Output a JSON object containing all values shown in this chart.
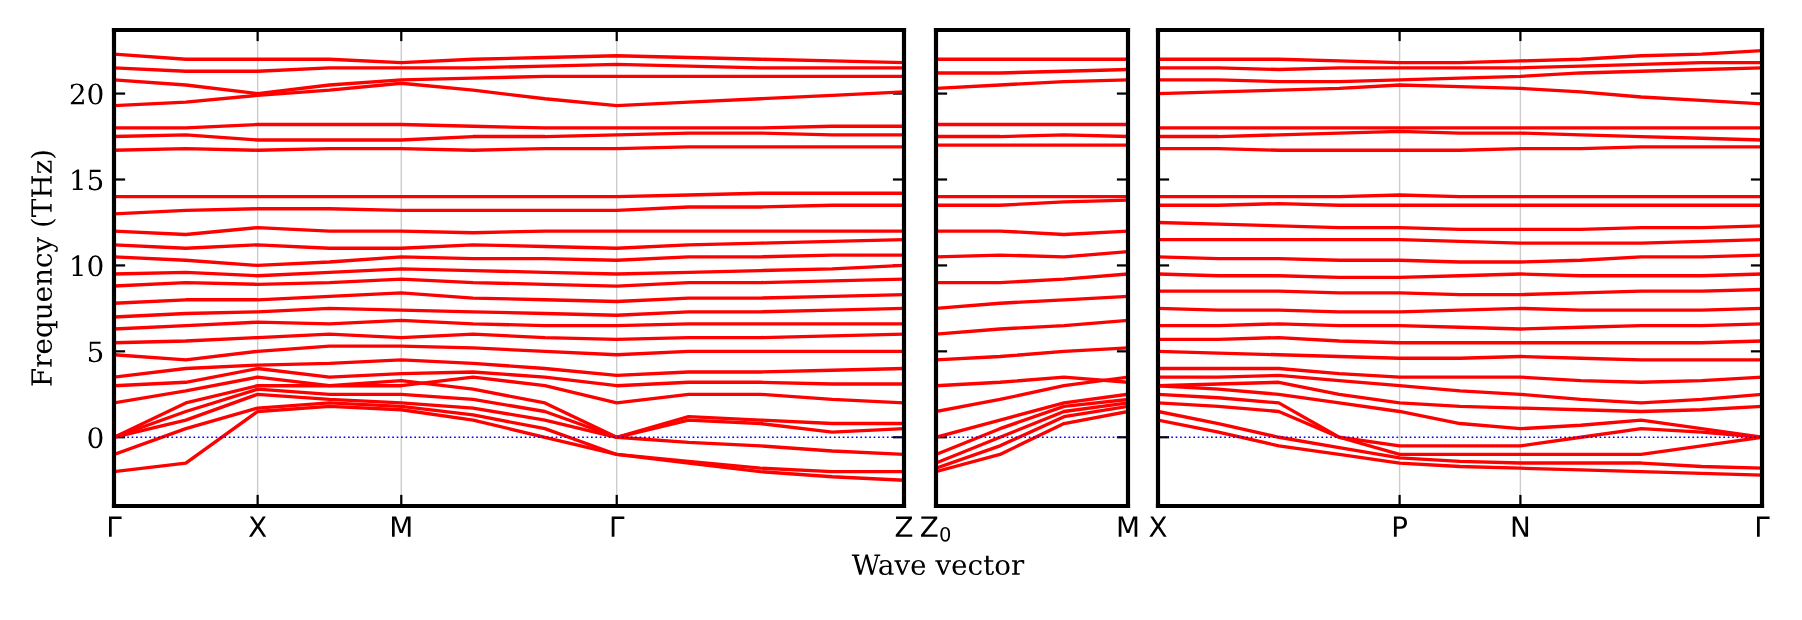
{
  "chart_data": [
    {
      "type": "line",
      "ylabel": "Frequency (THz)",
      "categories": [
        "Γ",
        null,
        "X",
        null,
        "M",
        null,
        null,
        "Γ",
        null,
        null,
        null,
        "Z"
      ],
      "ylim": [
        -4,
        23.7
      ],
      "yticks": [
        0,
        5,
        10,
        15,
        20
      ],
      "grid": "x",
      "ref_lines": [
        {
          "axis": "y",
          "value": 0,
          "color": "#0000ff",
          "line_style": "dotted"
        }
      ],
      "series": [
        {
          "color": "#ff0000",
          "values": [
            -2,
            -1.5,
            1.5,
            1.8,
            1.6,
            1,
            0,
            -1,
            -1.5,
            -2,
            -2.3,
            -2.5
          ]
        },
        {
          "color": "#ff0000",
          "values": [
            -1,
            0.5,
            1.7,
            2,
            1.8,
            1.3,
            0.5,
            -1,
            -1.4,
            -1.8,
            -2,
            -2
          ]
        },
        {
          "color": "#ff0000",
          "values": [
            0,
            1,
            2.5,
            2.2,
            2,
            1.7,
            1,
            0,
            -0.3,
            -0.5,
            -0.8,
            -1
          ]
        },
        {
          "color": "#ff0000",
          "values": [
            0,
            1.5,
            2.8,
            2.5,
            2.5,
            2.2,
            1.5,
            0,
            1,
            0.8,
            0.3,
            0.5
          ]
        },
        {
          "color": "#ff0000",
          "values": [
            0,
            2,
            3,
            3,
            3.3,
            2.8,
            2,
            0,
            1.2,
            1,
            0.8,
            0.8
          ]
        },
        {
          "color": "#ff0000",
          "values": [
            2,
            2.7,
            3.5,
            3,
            3,
            3.5,
            3,
            2,
            2.5,
            2.5,
            2.2,
            2
          ]
        },
        {
          "color": "#ff0000",
          "values": [
            3,
            3.2,
            4,
            3.5,
            3.7,
            3.8,
            3.5,
            3,
            3.2,
            3.2,
            3.1,
            3.1
          ]
        },
        {
          "color": "#ff0000",
          "values": [
            3.5,
            4,
            4.2,
            4.3,
            4.5,
            4.3,
            4,
            3.6,
            3.8,
            3.8,
            3.9,
            4
          ]
        },
        {
          "color": "#ff0000",
          "values": [
            4.8,
            4.5,
            5,
            5.3,
            5.3,
            5.2,
            5,
            4.8,
            5,
            5,
            5,
            5
          ]
        },
        {
          "color": "#ff0000",
          "values": [
            5.5,
            5.6,
            5.8,
            6,
            5.8,
            6,
            5.8,
            5.7,
            5.8,
            5.8,
            5.9,
            6
          ]
        },
        {
          "color": "#ff0000",
          "values": [
            6.3,
            6.5,
            6.7,
            6.6,
            6.8,
            6.6,
            6.5,
            6.5,
            6.6,
            6.6,
            6.6,
            6.6
          ]
        },
        {
          "color": "#ff0000",
          "values": [
            7,
            7.2,
            7.3,
            7.5,
            7.4,
            7.3,
            7.2,
            7.1,
            7.3,
            7.3,
            7.4,
            7.5
          ]
        },
        {
          "color": "#ff0000",
          "values": [
            7.8,
            8,
            8,
            8.2,
            8.4,
            8.1,
            8,
            7.9,
            8.1,
            8.1,
            8.2,
            8.3
          ]
        },
        {
          "color": "#ff0000",
          "values": [
            8.8,
            9,
            8.9,
            9,
            9.2,
            9,
            8.9,
            8.8,
            9,
            9,
            9.1,
            9.2
          ]
        },
        {
          "color": "#ff0000",
          "values": [
            9.5,
            9.6,
            9.4,
            9.6,
            9.8,
            9.7,
            9.6,
            9.5,
            9.6,
            9.7,
            9.8,
            10
          ]
        },
        {
          "color": "#ff0000",
          "values": [
            10.5,
            10.3,
            10,
            10.2,
            10.5,
            10.4,
            10.4,
            10.3,
            10.5,
            10.5,
            10.6,
            10.6
          ]
        },
        {
          "color": "#ff0000",
          "values": [
            11.2,
            11,
            11.2,
            11,
            11,
            11.2,
            11.1,
            11,
            11.2,
            11.3,
            11.4,
            11.5
          ]
        },
        {
          "color": "#ff0000",
          "values": [
            12,
            11.8,
            12.2,
            12,
            12,
            11.9,
            12,
            12,
            12,
            12,
            12,
            12
          ]
        },
        {
          "color": "#ff0000",
          "values": [
            13,
            13.2,
            13.3,
            13.3,
            13.2,
            13.2,
            13.2,
            13.2,
            13.4,
            13.4,
            13.5,
            13.5
          ]
        },
        {
          "color": "#ff0000",
          "values": [
            14,
            14,
            14,
            14,
            14,
            14,
            14,
            14,
            14.1,
            14.2,
            14.2,
            14.2
          ]
        },
        {
          "color": "#ff0000",
          "values": [
            16.7,
            16.8,
            16.7,
            16.8,
            16.8,
            16.7,
            16.8,
            16.8,
            16.9,
            16.9,
            16.9,
            16.9
          ]
        },
        {
          "color": "#ff0000",
          "values": [
            17.5,
            17.6,
            17.3,
            17.3,
            17.3,
            17.5,
            17.5,
            17.6,
            17.7,
            17.7,
            17.6,
            17.6
          ]
        },
        {
          "color": "#ff0000",
          "values": [
            18,
            18,
            18.2,
            18.2,
            18.2,
            18.1,
            18,
            18,
            18,
            18,
            18.1,
            18.1
          ]
        },
        {
          "color": "#ff0000",
          "values": [
            19.3,
            19.5,
            19.9,
            20.2,
            20.6,
            20.2,
            19.7,
            19.3,
            19.5,
            19.7,
            19.9,
            20.1
          ]
        },
        {
          "color": "#ff0000",
          "values": [
            20.8,
            20.5,
            20,
            20.5,
            20.8,
            20.9,
            21,
            21,
            21,
            21,
            21,
            21
          ]
        },
        {
          "color": "#ff0000",
          "values": [
            21.5,
            21.3,
            21.3,
            21.5,
            21.5,
            21.5,
            21.6,
            21.7,
            21.6,
            21.5,
            21.5,
            21.5
          ]
        },
        {
          "color": "#ff0000",
          "values": [
            22.3,
            22,
            22,
            22,
            21.8,
            22,
            22.1,
            22.2,
            22.1,
            22,
            21.9,
            21.8
          ]
        }
      ]
    },
    {
      "type": "line",
      "xlabel": "Wave vector",
      "categories": [
        "Z$_{0}$",
        null,
        null,
        "M"
      ],
      "ylim": [
        -4,
        23.7
      ],
      "yticks": [
        0,
        5,
        10,
        15,
        20
      ],
      "tick_labels": "x",
      "ref_lines": [
        {
          "axis": "y",
          "value": 0,
          "color": "#0000ff",
          "line_style": "dotted"
        }
      ],
      "series": [
        {
          "color": "#ff0000",
          "values": [
            -2,
            -1,
            0.8,
            1.5
          ]
        },
        {
          "color": "#ff0000",
          "values": [
            -1.8,
            -0.5,
            1.2,
            1.8
          ]
        },
        {
          "color": "#ff0000",
          "values": [
            -1.5,
            0,
            1.5,
            2.0
          ]
        },
        {
          "color": "#ff0000",
          "values": [
            -1,
            0.5,
            1.8,
            2.2
          ]
        },
        {
          "color": "#ff0000",
          "values": [
            0,
            1,
            2,
            2.5
          ]
        },
        {
          "color": "#ff0000",
          "values": [
            1.5,
            2.2,
            3,
            3.5
          ]
        },
        {
          "color": "#ff0000",
          "values": [
            3,
            3.2,
            3.5,
            3.2
          ]
        },
        {
          "color": "#ff0000",
          "values": [
            4.5,
            4.7,
            5,
            5.2
          ]
        },
        {
          "color": "#ff0000",
          "values": [
            6,
            6.3,
            6.5,
            6.8
          ]
        },
        {
          "color": "#ff0000",
          "values": [
            7.5,
            7.8,
            8,
            8.2
          ]
        },
        {
          "color": "#ff0000",
          "values": [
            9,
            9,
            9.2,
            9.5
          ]
        },
        {
          "color": "#ff0000",
          "values": [
            10.5,
            10.6,
            10.5,
            10.8
          ]
        },
        {
          "color": "#ff0000",
          "values": [
            12,
            12,
            11.8,
            12
          ]
        },
        {
          "color": "#ff0000",
          "values": [
            13.5,
            13.5,
            13.7,
            13.8
          ]
        },
        {
          "color": "#ff0000",
          "values": [
            14,
            14,
            14,
            14
          ]
        },
        {
          "color": "#ff0000",
          "values": [
            17,
            17,
            17,
            17
          ]
        },
        {
          "color": "#ff0000",
          "values": [
            17.5,
            17.5,
            17.6,
            17.5
          ]
        },
        {
          "color": "#ff0000",
          "values": [
            18.2,
            18.2,
            18.2,
            18.2
          ]
        },
        {
          "color": "#ff0000",
          "values": [
            20.3,
            20.5,
            20.7,
            20.8
          ]
        },
        {
          "color": "#ff0000",
          "values": [
            21.2,
            21.2,
            21.3,
            21.4
          ]
        },
        {
          "color": "#ff0000",
          "values": [
            22,
            22,
            22,
            22
          ]
        }
      ]
    },
    {
      "type": "line",
      "categories": [
        "X",
        null,
        null,
        null,
        "P",
        null,
        "N",
        null,
        null,
        null,
        "Γ"
      ],
      "ylim": [
        -4,
        23.7
      ],
      "yticks": [
        0,
        5,
        10,
        15,
        20
      ],
      "tick_labels": "x",
      "grid": "x",
      "ref_lines": [
        {
          "axis": "y",
          "value": 0,
          "color": "#0000ff",
          "line_style": "dotted"
        }
      ],
      "series": [
        {
          "color": "#ff0000",
          "values": [
            1,
            0.3,
            -0.5,
            -1,
            -1.5,
            -1.7,
            -1.8,
            -1.9,
            -2,
            -2.1,
            -2.2
          ]
        },
        {
          "color": "#ff0000",
          "values": [
            1.5,
            0.8,
            0,
            -0.6,
            -1.2,
            -1.4,
            -1.5,
            -1.5,
            -1.5,
            -1.7,
            -1.8
          ]
        },
        {
          "color": "#ff0000",
          "values": [
            2,
            1.8,
            1.5,
            0,
            -1,
            -1,
            -1,
            -1,
            -1,
            -0.5,
            0
          ]
        },
        {
          "color": "#ff0000",
          "values": [
            2.5,
            2.3,
            2,
            0,
            -0.5,
            -0.5,
            -0.5,
            0,
            0.5,
            0.3,
            0
          ]
        },
        {
          "color": "#ff0000",
          "values": [
            3,
            2.8,
            2.5,
            2,
            1.5,
            0.8,
            0.5,
            0.7,
            1,
            0.5,
            0
          ]
        },
        {
          "color": "#ff0000",
          "values": [
            3,
            3.1,
            3.2,
            2.5,
            2,
            1.8,
            1.7,
            1.6,
            1.5,
            1.6,
            1.8
          ]
        },
        {
          "color": "#ff0000",
          "values": [
            3.5,
            3.5,
            3.6,
            3.3,
            3,
            2.7,
            2.5,
            2.2,
            2,
            2.2,
            2.5
          ]
        },
        {
          "color": "#ff0000",
          "values": [
            4,
            4,
            4,
            3.7,
            3.5,
            3.5,
            3.5,
            3.3,
            3.2,
            3.3,
            3.5
          ]
        },
        {
          "color": "#ff0000",
          "values": [
            5,
            4.9,
            4.8,
            4.7,
            4.6,
            4.6,
            4.7,
            4.6,
            4.5,
            4.5,
            4.5
          ]
        },
        {
          "color": "#ff0000",
          "values": [
            5.7,
            5.7,
            5.8,
            5.6,
            5.5,
            5.5,
            5.5,
            5.5,
            5.5,
            5.5,
            5.6
          ]
        },
        {
          "color": "#ff0000",
          "values": [
            6.5,
            6.5,
            6.6,
            6.5,
            6.5,
            6.4,
            6.3,
            6.4,
            6.5,
            6.5,
            6.6
          ]
        },
        {
          "color": "#ff0000",
          "values": [
            7.5,
            7.4,
            7.4,
            7.3,
            7.3,
            7.4,
            7.5,
            7.4,
            7.4,
            7.4,
            7.5
          ]
        },
        {
          "color": "#ff0000",
          "values": [
            8.5,
            8.5,
            8.5,
            8.4,
            8.4,
            8.3,
            8.3,
            8.4,
            8.5,
            8.5,
            8.6
          ]
        },
        {
          "color": "#ff0000",
          "values": [
            9.5,
            9.4,
            9.4,
            9.3,
            9.3,
            9.4,
            9.5,
            9.4,
            9.4,
            9.4,
            9.5
          ]
        },
        {
          "color": "#ff0000",
          "values": [
            10.5,
            10.4,
            10.4,
            10.3,
            10.3,
            10.2,
            10.2,
            10.3,
            10.5,
            10.5,
            10.6
          ]
        },
        {
          "color": "#ff0000",
          "values": [
            11.5,
            11.5,
            11.5,
            11.5,
            11.5,
            11.4,
            11.3,
            11.3,
            11.3,
            11.4,
            11.5
          ]
        },
        {
          "color": "#ff0000",
          "values": [
            12.5,
            12.4,
            12.3,
            12.2,
            12.2,
            12.1,
            12.1,
            12.1,
            12.2,
            12.2,
            12.3
          ]
        },
        {
          "color": "#ff0000",
          "values": [
            13.5,
            13.5,
            13.6,
            13.5,
            13.5,
            13.5,
            13.5,
            13.5,
            13.5,
            13.5,
            13.5
          ]
        },
        {
          "color": "#ff0000",
          "values": [
            14,
            14,
            14,
            14,
            14.1,
            14,
            14,
            14,
            14,
            14,
            14
          ]
        },
        {
          "color": "#ff0000",
          "values": [
            16.8,
            16.8,
            16.7,
            16.7,
            16.7,
            16.7,
            16.8,
            16.8,
            16.9,
            16.9,
            16.9
          ]
        },
        {
          "color": "#ff0000",
          "values": [
            17.5,
            17.5,
            17.6,
            17.7,
            17.8,
            17.7,
            17.7,
            17.6,
            17.5,
            17.4,
            17.3
          ]
        },
        {
          "color": "#ff0000",
          "values": [
            18,
            18,
            18,
            18,
            18,
            18,
            18,
            18,
            18,
            18,
            18
          ]
        },
        {
          "color": "#ff0000",
          "values": [
            20,
            20.1,
            20.2,
            20.3,
            20.5,
            20.4,
            20.3,
            20.1,
            19.8,
            19.6,
            19.4
          ]
        },
        {
          "color": "#ff0000",
          "values": [
            20.8,
            20.8,
            20.7,
            20.7,
            20.8,
            20.9,
            21,
            21.2,
            21.3,
            21.4,
            21.5
          ]
        },
        {
          "color": "#ff0000",
          "values": [
            21.5,
            21.5,
            21.4,
            21.5,
            21.5,
            21.5,
            21.5,
            21.6,
            21.7,
            21.8,
            21.8
          ]
        },
        {
          "color": "#ff0000",
          "values": [
            22,
            22,
            22,
            21.9,
            21.8,
            21.8,
            21.9,
            22,
            22.2,
            22.3,
            22.5
          ]
        }
      ]
    }
  ]
}
